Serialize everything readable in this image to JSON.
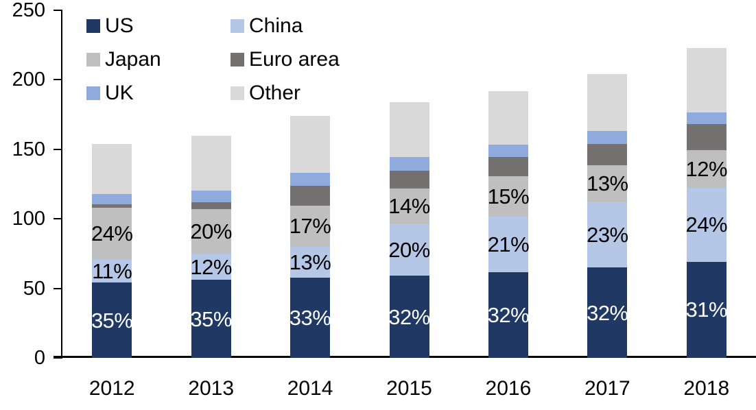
{
  "chart_data": {
    "type": "bar",
    "variant": "stacked",
    "title": "",
    "categories": [
      "2012",
      "2013",
      "2014",
      "2015",
      "2016",
      "2017",
      "2018"
    ],
    "series": [
      {
        "name": "US",
        "color": "#1F3864",
        "label_color": "#FFFFFF",
        "values": [
          54,
          56,
          57.5,
          59,
          61.5,
          65,
          69
        ],
        "labels": [
          "35%",
          "35%",
          "33%",
          "32%",
          "32%",
          "32%",
          "31%"
        ]
      },
      {
        "name": "China",
        "color": "#B4C7E7",
        "label_color": "#000000",
        "values": [
          17,
          19,
          22.5,
          37,
          40,
          47,
          53.5
        ],
        "labels": [
          "11%",
          "12%",
          "13%",
          "20%",
          "21%",
          "23%",
          "24%"
        ]
      },
      {
        "name": "Japan",
        "color": "#BFBFBF",
        "label_color": "#000000",
        "values": [
          37,
          32,
          29.5,
          26,
          29,
          26.5,
          27
        ],
        "labels": [
          "24%",
          "20%",
          "17%",
          "14%",
          "15%",
          "13%",
          "12%"
        ]
      },
      {
        "name": "Euro area",
        "color": "#767171",
        "label_color": "",
        "values": [
          2.5,
          5,
          14.5,
          12.5,
          14,
          15.5,
          18.5
        ],
        "labels": [
          "",
          "",
          "",
          "",
          "",
          "",
          ""
        ]
      },
      {
        "name": "UK",
        "color": "#8FAADC",
        "label_color": "",
        "values": [
          7.5,
          8.5,
          9,
          10,
          9,
          9,
          8.5
        ],
        "labels": [
          "",
          "",
          "",
          "",
          "",
          "",
          ""
        ]
      },
      {
        "name": "Other",
        "color": "#D9D9D9",
        "label_color": "",
        "values": [
          36,
          39.5,
          41,
          39.5,
          38.5,
          41,
          46.5
        ],
        "labels": [
          "",
          "",
          "",
          "",
          "",
          "",
          ""
        ]
      }
    ],
    "stack_order_bottom_to_top": [
      "US",
      "China",
      "Japan",
      "Euro area",
      "UK",
      "Other"
    ],
    "totals": [
      154,
      160,
      174,
      184,
      192,
      204,
      223
    ],
    "y_axis": {
      "min": 0,
      "max": 250,
      "tick_step": 50,
      "tick_labels": [
        "0",
        "50",
        "100",
        "150",
        "200",
        "250"
      ]
    },
    "x_axis": {
      "tick_labels": [
        "2012",
        "2013",
        "2014",
        "2015",
        "2016",
        "2017",
        "2018"
      ]
    },
    "legend": {
      "position": "top-left",
      "columns": 2,
      "order": [
        "US",
        "China",
        "Japan",
        "Euro area",
        "UK",
        "Other"
      ]
    },
    "grid": "off",
    "axis_color": "#000000",
    "background_color": "#FFFFFF"
  }
}
